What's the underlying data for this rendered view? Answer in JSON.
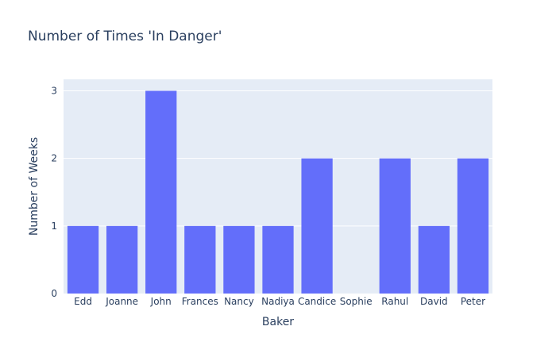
{
  "chart_data": {
    "type": "bar",
    "title": "Number of Times 'In Danger'",
    "xlabel": "Baker",
    "ylabel": "Number of Weeks",
    "categories": [
      "Edd",
      "Joanne",
      "John",
      "Frances",
      "Nancy",
      "Nadiya",
      "Candice",
      "Sophie",
      "Rahul",
      "David",
      "Peter"
    ],
    "values": [
      1,
      1,
      3,
      1,
      1,
      1,
      2,
      0,
      2,
      1,
      2
    ],
    "ylim": [
      0,
      3.17
    ],
    "yticks": [
      0,
      1,
      2,
      3
    ],
    "grid": true,
    "legend": "none",
    "colors": {
      "bar": "#636efa",
      "plot_background": "#e5ecf6",
      "grid": "#ffffff",
      "text": "#2a3f5f"
    }
  }
}
